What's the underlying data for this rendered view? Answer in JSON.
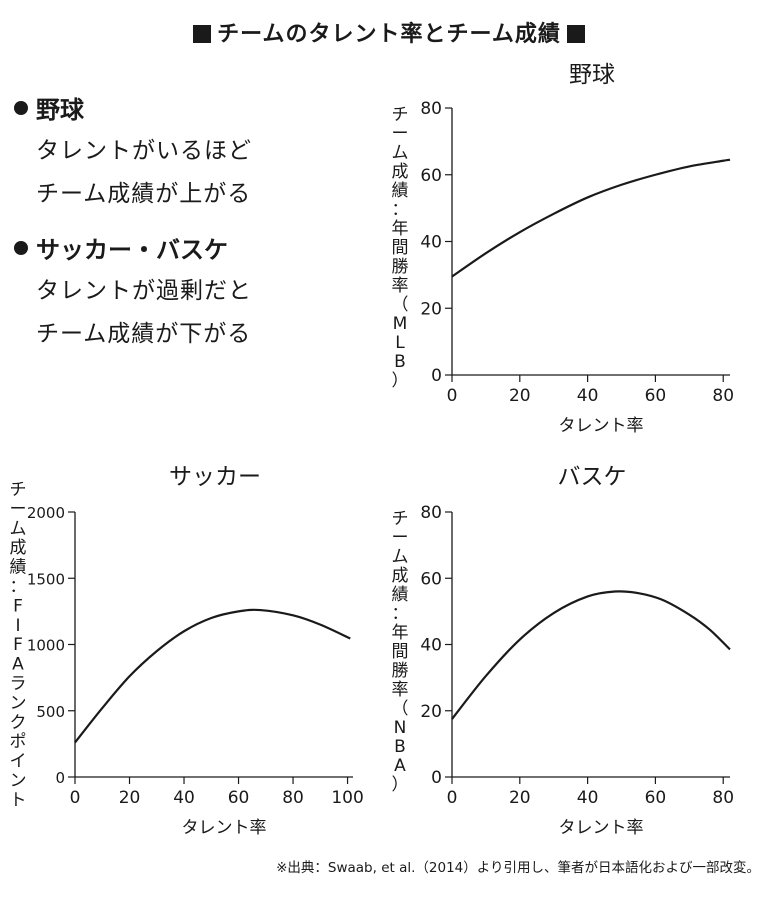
{
  "title": "チームのタレント率とチーム成績",
  "bullets": [
    {
      "head": "野球",
      "lines": [
        "タレントがいるほど",
        "チーム成績が上がる"
      ]
    },
    {
      "head": "サッカー・バスケ",
      "lines": [
        "タレントが過剰だと",
        "チーム成績が下がる"
      ]
    }
  ],
  "chart_data": [
    {
      "type": "line",
      "title": "野球",
      "xlabel": "タレント率",
      "ylabel": "チーム成績：年間勝率（MLB）",
      "xlim": [
        0,
        82
      ],
      "ylim": [
        0,
        80
      ],
      "xticks": [
        0,
        20,
        40,
        60,
        80
      ],
      "yticks": [
        0,
        20,
        40,
        60,
        80
      ],
      "series": [
        {
          "x": [
            0,
            10,
            20,
            30,
            40,
            50,
            60,
            70,
            80,
            82
          ],
          "values": [
            29.5,
            36.5,
            42.8,
            48.3,
            53.2,
            57.0,
            60.0,
            62.5,
            64.2,
            64.5
          ]
        }
      ]
    },
    {
      "type": "line",
      "title": "サッカー",
      "xlabel": "タレント率",
      "ylabel": "チーム成績：FIFAランクポイント",
      "xlim": [
        0,
        102
      ],
      "ylim": [
        0,
        2000
      ],
      "xticks": [
        0,
        20,
        40,
        60,
        80,
        100
      ],
      "yticks": [
        0,
        500,
        1000,
        1500,
        2000
      ],
      "series": [
        {
          "x": [
            0,
            10,
            20,
            30,
            40,
            50,
            60,
            68,
            80,
            90,
            101
          ],
          "values": [
            260,
            520,
            760,
            950,
            1100,
            1200,
            1250,
            1260,
            1220,
            1150,
            1045
          ]
        }
      ]
    },
    {
      "type": "line",
      "title": "バスケ",
      "xlabel": "タレント率",
      "ylabel": "チーム成績：年間勝率（NBA）",
      "xlim": [
        0,
        82
      ],
      "ylim": [
        0,
        80
      ],
      "xticks": [
        0,
        20,
        40,
        60,
        80
      ],
      "yticks": [
        0,
        20,
        40,
        60,
        80
      ],
      "series": [
        {
          "x": [
            0,
            10,
            20,
            30,
            40,
            48,
            55,
            62,
            70,
            76,
            82
          ],
          "values": [
            17.5,
            30.5,
            41.5,
            49.5,
            54.5,
            56,
            55.5,
            53.5,
            49,
            44.5,
            38.5
          ]
        }
      ]
    }
  ],
  "footer": "※出典：Swaab, et al.（2014）より引用し、筆者が日本語化および一部改変。",
  "colors": {
    "ink": "#1a1a1a",
    "background": "#ffffff"
  }
}
